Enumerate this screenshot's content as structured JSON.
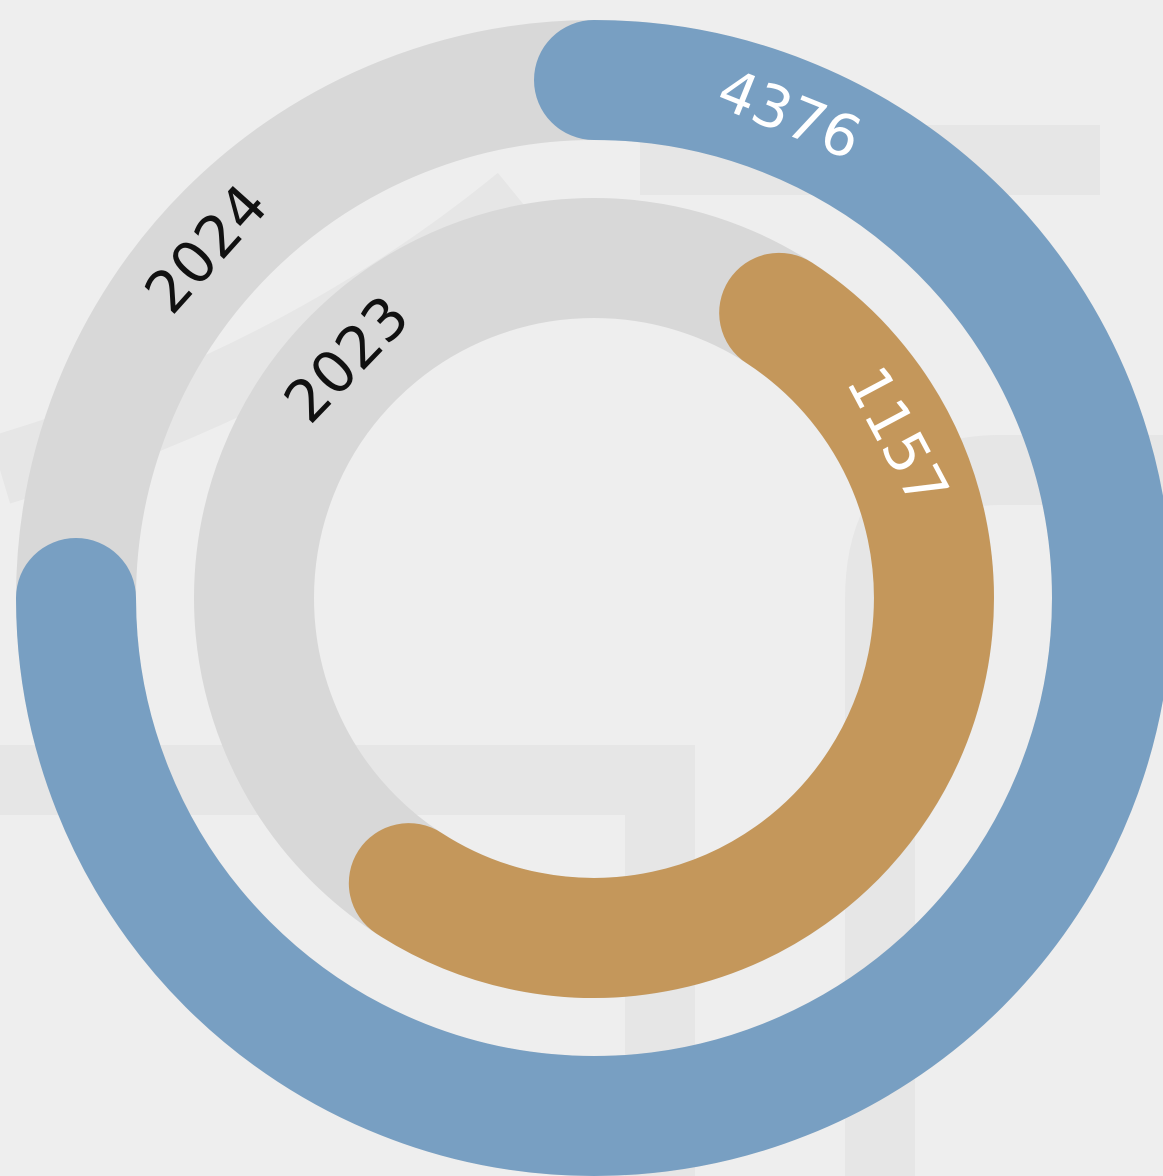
{
  "chart_data": {
    "type": "radial_bar",
    "categories": [
      "2024",
      "2023"
    ],
    "values": [
      4376,
      1157
    ],
    "colors": [
      "#789fc2",
      "#c4975b"
    ],
    "track_color": "#d8d8d8"
  }
}
